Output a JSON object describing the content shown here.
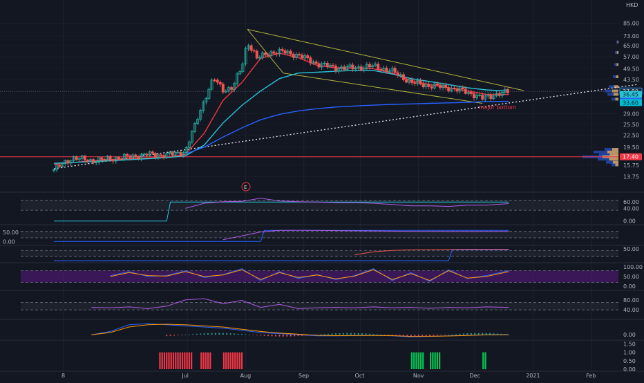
{
  "chart_data": {
    "type": "candlestick",
    "currency": "HKD",
    "annotation": "major bottom",
    "earnings_marker": "E",
    "price_axis": {
      "scale": "log",
      "range": [
        12.5,
        95
      ],
      "ticks": [
        "85.00",
        "73.00",
        "65.00",
        "57.00",
        "49.50",
        "43.50",
        "37.80",
        "33.60",
        "29.00",
        "25.50",
        "22.50",
        "19.50",
        "17.40",
        "15.75",
        "13.75"
      ]
    },
    "price_badges": [
      {
        "label": "37.80",
        "value": 37.8,
        "color": "#1e222d",
        "text_color": "#d1d4dc",
        "border": "#2196f3"
      },
      {
        "label": "36.45",
        "value": 36.45,
        "color": "#26c6da",
        "text_color": "#131722"
      },
      {
        "label": "33.60",
        "value": 33.6,
        "color": "#2962ff",
        "text_color": "#ffffff"
      },
      {
        "label": "33.60",
        "value": 33.1,
        "color": "#00bcd4",
        "text_color": "#131722"
      },
      {
        "label": "17.40",
        "value": 17.4,
        "color": "#f23645",
        "text_color": "#ffffff"
      }
    ],
    "x_axis": {
      "labels": [
        "8",
        "Jul",
        "Aug",
        "Sep",
        "Oct",
        "Nov",
        "Dec",
        "2021",
        "Feb"
      ],
      "first_day": 0,
      "label_days": [
        5,
        71,
        102,
        133,
        163,
        194,
        224,
        255,
        286
      ]
    },
    "support_line_price": 17.4,
    "close_markers": [
      {
        "day": 0,
        "close": 14.9
      },
      {
        "day": 10,
        "close": 17.2
      },
      {
        "day": 20,
        "close": 16.6
      },
      {
        "day": 30,
        "close": 17.0
      },
      {
        "day": 40,
        "close": 17.4
      },
      {
        "day": 50,
        "close": 17.9
      },
      {
        "day": 60,
        "close": 17.7
      },
      {
        "day": 70,
        "close": 18.5
      },
      {
        "day": 75,
        "close": 25.0
      },
      {
        "day": 80,
        "close": 34.0
      },
      {
        "day": 85,
        "close": 44.0
      },
      {
        "day": 90,
        "close": 38.5
      },
      {
        "day": 95,
        "close": 39.5
      },
      {
        "day": 100,
        "close": 50.0
      },
      {
        "day": 103,
        "close": 68.0
      },
      {
        "day": 108,
        "close": 56.0
      },
      {
        "day": 115,
        "close": 60.0
      },
      {
        "day": 122,
        "close": 60.5
      },
      {
        "day": 130,
        "close": 58.0
      },
      {
        "day": 140,
        "close": 52.5
      },
      {
        "day": 150,
        "close": 50.0
      },
      {
        "day": 160,
        "close": 50.0
      },
      {
        "day": 170,
        "close": 51.0
      },
      {
        "day": 180,
        "close": 48.0
      },
      {
        "day": 190,
        "close": 42.0
      },
      {
        "day": 200,
        "close": 40.5
      },
      {
        "day": 210,
        "close": 39.5
      },
      {
        "day": 220,
        "close": 37.5
      },
      {
        "day": 228,
        "close": 34.8
      },
      {
        "day": 235,
        "close": 36.5
      },
      {
        "day": 242,
        "close": 37.6
      }
    ],
    "series": [
      {
        "name": "",
        "color": "#f23645",
        "x": [
          0,
          20,
          40,
          60,
          70,
          80,
          90,
          100,
          110,
          120,
          130,
          140,
          150,
          160,
          170,
          180,
          190,
          200,
          210,
          220,
          230,
          242
        ],
        "values": [
          15.9,
          16.6,
          17.0,
          17.3,
          17.9,
          23.0,
          34.0,
          42.0,
          56.0,
          59.5,
          56.5,
          51.5,
          50.0,
          50.0,
          49.5,
          47.0,
          43.0,
          41.0,
          39.5,
          38.0,
          36.5,
          36.45
        ]
      },
      {
        "name": "",
        "color": "#26c6da",
        "x": [
          0,
          30,
          60,
          70,
          80,
          90,
          100,
          110,
          120,
          130,
          140,
          150,
          160,
          170,
          180,
          190,
          200,
          210,
          220,
          230,
          242
        ],
        "values": [
          16.1,
          16.6,
          17.2,
          17.6,
          20.0,
          26.0,
          32.0,
          38.0,
          44.0,
          47.0,
          47.5,
          48.0,
          48.5,
          48.5,
          46.5,
          44.0,
          42.5,
          41.0,
          39.5,
          38.5,
          37.9
        ]
      },
      {
        "name": "",
        "color": "#2962ff",
        "x": [
          70,
          80,
          90,
          100,
          110,
          120,
          130,
          140,
          150,
          160,
          170,
          180,
          190,
          200,
          210,
          220,
          230,
          242
        ],
        "values": [
          18.0,
          19.5,
          22.0,
          24.5,
          27.0,
          28.8,
          30.0,
          30.8,
          31.4,
          31.8,
          32.1,
          32.4,
          32.6,
          32.8,
          33.0,
          33.2,
          33.5,
          33.6
        ]
      }
    ],
    "trendlines": [
      {
        "kind": "channel-upper",
        "color": "#b5b53a",
        "dash": "",
        "x": [
          103,
          250
        ],
        "values": [
          79.0,
          38.2
        ]
      },
      {
        "kind": "channel-lower",
        "color": "#b5b53a",
        "dash": "",
        "x": [
          122,
          228
        ],
        "values": [
          47.0,
          32.8
        ]
      },
      {
        "kind": "channel-left",
        "color": "#b5b53a",
        "dash": "",
        "x": [
          103,
          122
        ],
        "values": [
          79.0,
          47.0
        ]
      },
      {
        "kind": "support-dotted",
        "color": "#e0e3eb",
        "dash": "2,3",
        "x": [
          0,
          310
        ],
        "values": [
          15.1,
          41.0
        ]
      }
    ],
    "volume_profile_right": [
      {
        "value": 19.0,
        "width": 20
      },
      {
        "value": 18.4,
        "width": 36
      },
      {
        "value": 17.8,
        "width": 28
      },
      {
        "value": 17.4,
        "width": 52
      },
      {
        "value": 16.9,
        "width": 30
      },
      {
        "value": 16.3,
        "width": 18
      },
      {
        "value": 15.8,
        "width": 10
      },
      {
        "value": 40.0,
        "width": 14
      },
      {
        "value": 38.0,
        "width": 20
      },
      {
        "value": 36.5,
        "width": 16
      },
      {
        "value": 34.5,
        "width": 10
      },
      {
        "value": 45.0,
        "width": 8
      },
      {
        "value": 52.0,
        "width": 6
      },
      {
        "value": 60.0,
        "width": 5
      },
      {
        "value": 68.0,
        "width": 3
      }
    ],
    "panels": [
      {
        "name": "osc-1",
        "ticks": [
          "60.00",
          "40.00",
          "0.00"
        ],
        "ticks_side": "right",
        "ylim": [
          -5,
          80
        ],
        "band": [
          34,
          66
        ],
        "purple_band": false,
        "series": [
          {
            "color": "#26c6da",
            "x": [
              0,
              60,
              62,
              242
            ],
            "values": [
              0,
              0,
              60,
              60
            ]
          },
          {
            "color": "#b15ee8",
            "x": [
              70,
              80,
              90,
              100,
              110,
              120,
              130,
              140,
              150,
              160,
              170,
              180,
              190,
              200,
              210,
              220,
              230,
              242
            ],
            "values": [
              40,
              56,
              61,
              62,
              72,
              63,
              61,
              60,
              58,
              58,
              56,
              52,
              48,
              48,
              46,
              50,
              50,
              55
            ]
          }
        ]
      },
      {
        "name": "osc-2",
        "ticks": [
          "50.00",
          "0.00"
        ],
        "ticks_side": "left",
        "ylim": [
          -10,
          80
        ],
        "band": [
          20,
          55
        ],
        "purple_band": false,
        "series": [
          {
            "color": "#2962ff",
            "x": [
              0,
              110,
              112,
              242
            ],
            "values": [
              0,
              0,
              60,
              60
            ]
          },
          {
            "color": "#b15ee8",
            "x": [
              90,
              100,
              110,
              120,
              130,
              140,
              150,
              160,
              170,
              180,
              190,
              200,
              210,
              220,
              230,
              242
            ],
            "values": [
              10,
              30,
              52,
              60,
              61,
              60,
              59,
              58,
              57,
              56,
              55,
              55,
              54,
              54,
              54,
              55
            ]
          }
        ]
      },
      {
        "name": "osc-3",
        "ticks": [
          "50.00"
        ],
        "ticks_side": "right",
        "ylim": [
          -30,
          60
        ],
        "band": [
          0,
          40
        ],
        "purple_band": false,
        "series": [
          {
            "color": "#2962ff",
            "x": [
              0,
              210,
              212,
              242
            ],
            "values": [
              -30,
              -30,
              45,
              45
            ]
          },
          {
            "color": "#ef5350",
            "x": [
              160,
              170,
              180,
              190,
              200,
              210,
              220,
              230,
              242
            ],
            "values": [
              10,
              30,
              40,
              45,
              46,
              47,
              48,
              48,
              48
            ]
          }
        ]
      },
      {
        "name": "stoch",
        "ticks": [
          "100.00",
          "50.00",
          "0.00"
        ],
        "ticks_side": "right",
        "ylim": [
          -10,
          110
        ],
        "band": [
          20,
          80
        ],
        "purple_band": true,
        "series": [
          {
            "color": "#2962ff",
            "x": [
              30,
              40,
              50,
              60,
              70,
              80,
              90,
              100,
              110,
              120,
              130,
              140,
              150,
              160,
              170,
              180,
              190,
              200,
              210,
              220,
              230,
              242
            ],
            "values": [
              55,
              75,
              50,
              55,
              80,
              45,
              60,
              90,
              30,
              75,
              40,
              60,
              35,
              55,
              90,
              30,
              70,
              25,
              85,
              40,
              55,
              80
            ]
          },
          {
            "color": "#ff9800",
            "x": [
              30,
              40,
              50,
              60,
              70,
              80,
              90,
              100,
              110,
              120,
              130,
              140,
              150,
              160,
              170,
              180,
              190,
              200,
              210,
              220,
              230,
              242
            ],
            "values": [
              50,
              70,
              55,
              52,
              75,
              50,
              58,
              85,
              35,
              70,
              45,
              58,
              38,
              52,
              85,
              35,
              65,
              30,
              80,
              42,
              50,
              75
            ]
          }
        ]
      },
      {
        "name": "rsi",
        "ticks": [
          "80.00",
          "40.00"
        ],
        "ticks_side": "right",
        "ylim": [
          10,
          110
        ],
        "band": [
          40,
          70
        ],
        "purple_band": false,
        "series": [
          {
            "color": "#b15ee8",
            "x": [
              20,
              30,
              40,
              50,
              60,
              70,
              80,
              90,
              100,
              110,
              120,
              130,
              140,
              150,
              160,
              170,
              180,
              190,
              200,
              210,
              220,
              230,
              242
            ],
            "values": [
              50,
              48,
              52,
              45,
              55,
              80,
              85,
              65,
              78,
              50,
              62,
              45,
              48,
              50,
              48,
              52,
              48,
              50,
              46,
              50,
              48,
              52,
              50
            ]
          }
        ]
      },
      {
        "name": "macd",
        "ticks": [
          "0.00"
        ],
        "ticks_side": "right",
        "ylim": [
          -3,
          12
        ],
        "band": null,
        "purple_band": false,
        "series": [
          {
            "color": "#2962ff",
            "x": [
              20,
              30,
              40,
              50,
              60,
              70,
              80,
              90,
              100,
              110,
              120,
              130,
              140,
              150,
              160,
              170,
              180,
              190,
              200,
              210,
              220,
              230,
              242
            ],
            "values": [
              0,
              3,
              9,
              10,
              9,
              8,
              7,
              6,
              4,
              2,
              1,
              0,
              -1,
              -1,
              -0.8,
              -0.5,
              -1,
              -2,
              -1.5,
              -1,
              -0.5,
              0,
              0
            ]
          },
          {
            "color": "#ff9800",
            "x": [
              20,
              30,
              40,
              50,
              60,
              70,
              80,
              90,
              100,
              110,
              120,
              130,
              140,
              150,
              160,
              170,
              180,
              190,
              200,
              210,
              220,
              230,
              242
            ],
            "values": [
              0,
              2,
              7,
              9,
              9.5,
              9,
              8,
              7,
              5,
              3,
              1.5,
              0.5,
              -0.5,
              -0.8,
              -0.7,
              -0.6,
              -0.8,
              -1.5,
              -1.4,
              -1.1,
              -0.6,
              -0.1,
              0
            ]
          }
        ]
      },
      {
        "name": "signals",
        "ticks": [
          "1.50",
          "1.00",
          "0.50",
          "0.00"
        ],
        "ticks_side": "right",
        "ylim": [
          0,
          1.6
        ],
        "band": null,
        "purple_band": false,
        "series": []
      }
    ],
    "signal_bars": [
      {
        "color": "#f23645",
        "from": 56,
        "to": 74
      },
      {
        "color": "#f23645",
        "from": 78,
        "to": 84
      },
      {
        "color": "#f23645",
        "from": 90,
        "to": 100
      },
      {
        "color": "#00c853",
        "from": 190,
        "to": 197
      },
      {
        "color": "#00c853",
        "from": 200,
        "to": 205
      },
      {
        "color": "#00c853",
        "from": 228,
        "to": 230
      }
    ]
  }
}
